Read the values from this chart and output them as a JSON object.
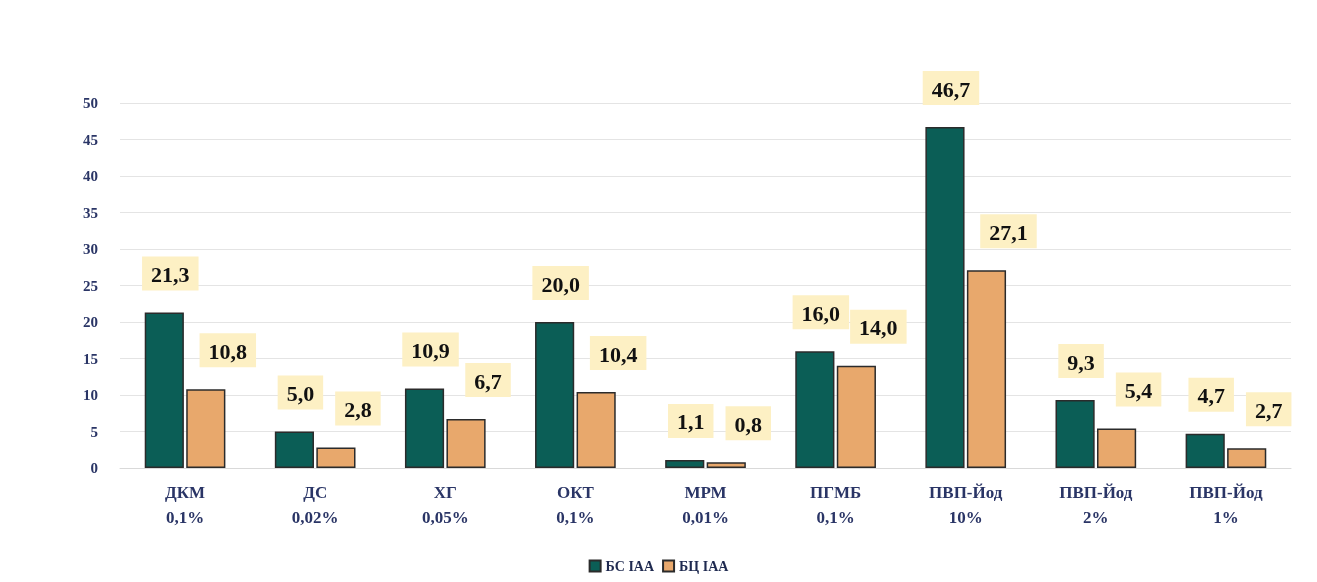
{
  "chart_data": {
    "type": "bar",
    "categories": [
      "ДКМ\n0,1%",
      "ДС\n0,02%",
      "ХГ\n0,05%",
      "ОКТ\n0,1%",
      "МРМ\n0,01%",
      "ПГМБ\n0,1%",
      "ПВП-Йод\n10%",
      "ПВП-Йод\n2%",
      "ПВП-Йод\n1%"
    ],
    "series": [
      {
        "name": "БС IAA",
        "color": "#0b5e56",
        "values": [
          21.3,
          5.0,
          10.9,
          20.0,
          1.1,
          16.0,
          46.7,
          9.3,
          4.7
        ],
        "value_labels": [
          "21,3",
          "5,0",
          "10,9",
          "20,0",
          "1,1",
          "16,0",
          "46,7",
          "9,3",
          "4,7"
        ]
      },
      {
        "name": "БЦ IAA",
        "color": "#e8a86c",
        "values": [
          10.8,
          2.8,
          6.7,
          10.4,
          0.8,
          14.0,
          27.1,
          5.4,
          2.7
        ],
        "value_labels": [
          "10,8",
          "2,8",
          "6,7",
          "10,4",
          "0,8",
          "14,0",
          "27,1",
          "5,4",
          "2,7"
        ]
      }
    ],
    "ylim": [
      0,
      50
    ],
    "yticks": [
      0,
      5,
      10,
      15,
      20,
      25,
      30,
      35,
      40,
      45,
      50
    ],
    "grid": "y",
    "legend": "bottom"
  }
}
